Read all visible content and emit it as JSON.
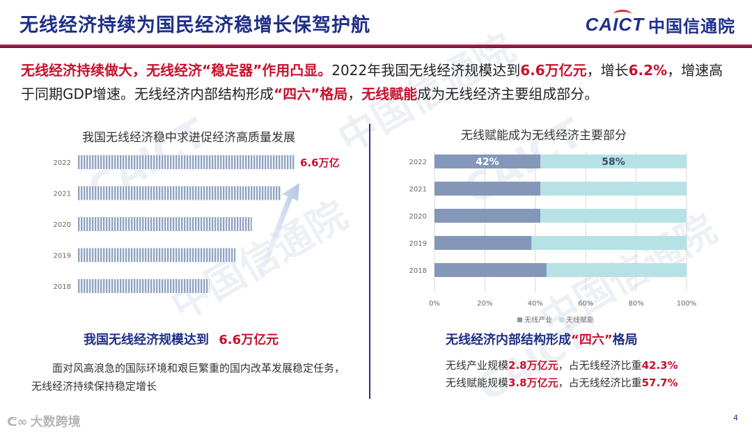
{
  "header": {
    "title": "无线经济持续为国民经济稳增长保驾护航",
    "logo_en": "CAICT",
    "logo_cn": "中国信通院"
  },
  "intro": {
    "p1": "无线经济持续做大，无线经济“稳定器”作用凸显。",
    "p2": "2022年我国无线经济规模达到",
    "p3": "6.6万亿元",
    "p4": "，增长",
    "p5": "6.2%",
    "p6": "，增速高于同期GDP增速。无线经济内部结构形成",
    "p7": "“四六”格局",
    "p8": "，",
    "p9": "无线赋能",
    "p10": "成为无线经济主要组成部分。"
  },
  "left": {
    "chart_title": "我国无线经济稳中求进促经济高质量发展",
    "subheading_a": "我国无线经济规模达到",
    "subheading_b": "6.6万亿元",
    "body": "面对风高浪急的国际环境和艰巨繁重的国内改革发展稳定任务，无线经济持续保持稳定增长"
  },
  "right": {
    "chart_title": "无线赋能成为无线经济主要部分",
    "subheading_a": "无线经济内部结构形成",
    "subheading_b": "“四六”",
    "subheading_c": "格局",
    "stat1": {
      "a": "无线产业规模",
      "b": "2.8万亿元",
      "c": "，占无线经济比重",
      "d": "42.3%"
    },
    "stat2": {
      "a": "无线赋能规模",
      "b": "3.8万亿元",
      "c": "，占无线经济比重",
      "d": "57.7%"
    }
  },
  "footer": {
    "brand": "大数跨境",
    "page": "4"
  },
  "watermark": {
    "en": "CAICT",
    "cn": "中国信通院"
  },
  "colors": {
    "accent_red": "#c8102e",
    "brand_blue": "#1f2f88",
    "bar_left": "#8fa3c2",
    "industry": "#8497b8",
    "enabling": "#b7e2e5"
  },
  "chart_data": [
    {
      "type": "bar",
      "orientation": "horizontal",
      "title": "我国无线经济稳中求进促经济高质量发展",
      "categories": [
        "2022",
        "2021",
        "2020",
        "2019",
        "2018"
      ],
      "values": [
        6.6,
        6.2,
        5.3,
        4.8,
        4.0
      ],
      "data_labels": {
        "2022": "6.6万亿"
      },
      "xlim": [
        0,
        8
      ]
    },
    {
      "type": "bar",
      "orientation": "horizontal",
      "stacked": true,
      "title": "无线赋能成为无线经济主要部分",
      "categories": [
        "2022",
        "2021",
        "2020",
        "2019",
        "2018"
      ],
      "series": [
        {
          "name": "无线产业",
          "values": [
            42,
            42,
            42,
            38.5,
            44.5
          ]
        },
        {
          "name": "无线赋能",
          "values": [
            58,
            58,
            58,
            61.5,
            55.5
          ]
        }
      ],
      "data_labels": {
        "2022": [
          "42%",
          "58%"
        ]
      },
      "xlim": [
        0,
        100
      ],
      "xticks": [
        "0%",
        "20%",
        "40%",
        "60%",
        "80%",
        "100%"
      ],
      "legend": "bottom"
    }
  ]
}
